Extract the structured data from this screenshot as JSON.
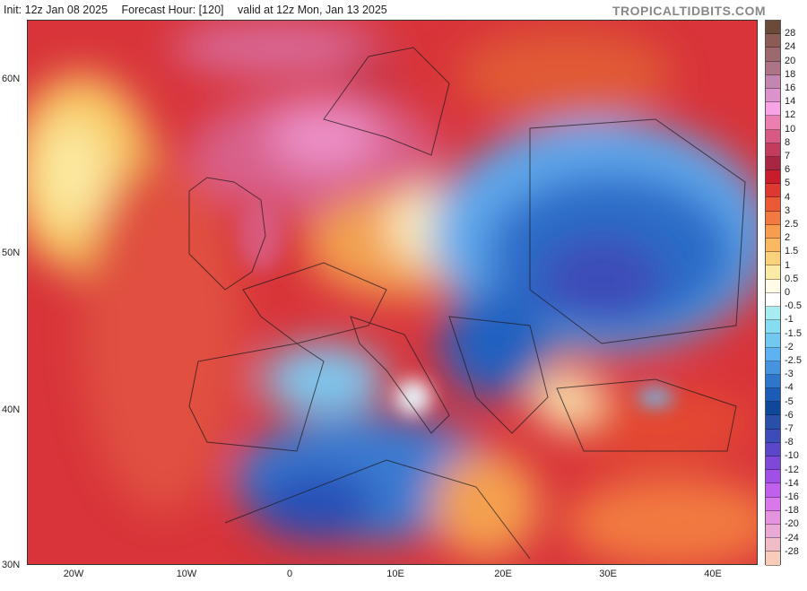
{
  "header": {
    "init": "Init: 12z Jan 08 2025",
    "forecast_hour": "Forecast Hour: [120]",
    "valid": "valid at 12z Mon, Jan 13 2025",
    "brand": "TROPICALTIDBITS.COM"
  },
  "map": {
    "lat_labels": [
      "60N",
      "50N",
      "40N",
      "30N"
    ],
    "lon_labels": [
      "20W",
      "10W",
      "0",
      "10E",
      "20E",
      "30E",
      "40E"
    ]
  },
  "colorbar": {
    "labels": [
      "28",
      "24",
      "20",
      "18",
      "16",
      "14",
      "12",
      "10",
      "8",
      "7",
      "6",
      "5",
      "4",
      "3",
      "2.5",
      "2",
      "1.5",
      "1",
      "0.5",
      "0",
      "-0.5",
      "-1",
      "-1.5",
      "-2",
      "-2.5",
      "-3",
      "-4",
      "-5",
      "-6",
      "-7",
      "-8",
      "-10",
      "-12",
      "-14",
      "-16",
      "-18",
      "-20",
      "-24",
      "-28"
    ],
    "colors": [
      "#6b4a3a",
      "#8a5c55",
      "#9c6a6e",
      "#ad7488",
      "#c286b0",
      "#dc92cc",
      "#f7a3e6",
      "#ea7fb0",
      "#d85a84",
      "#c23c5e",
      "#a82642",
      "#c81e2c",
      "#dc3a30",
      "#ea5a34",
      "#f07a40",
      "#f89c50",
      "#f9b862",
      "#fad27a",
      "#faeaa6",
      "#fffbe6",
      "#ffffff",
      "#a6ecf0",
      "#86dcf0",
      "#72c8f0",
      "#5eb2f2",
      "#4694e0",
      "#2e76cc",
      "#1c5cb8",
      "#0f4898",
      "#2a4fa8",
      "#3c4cb8",
      "#5a48c8",
      "#8048d8",
      "#a050e6",
      "#c060ec",
      "#d878ea",
      "#e494dc",
      "#eaa8d4",
      "#f0bcc8",
      "#f8ccb8"
    ]
  }
}
